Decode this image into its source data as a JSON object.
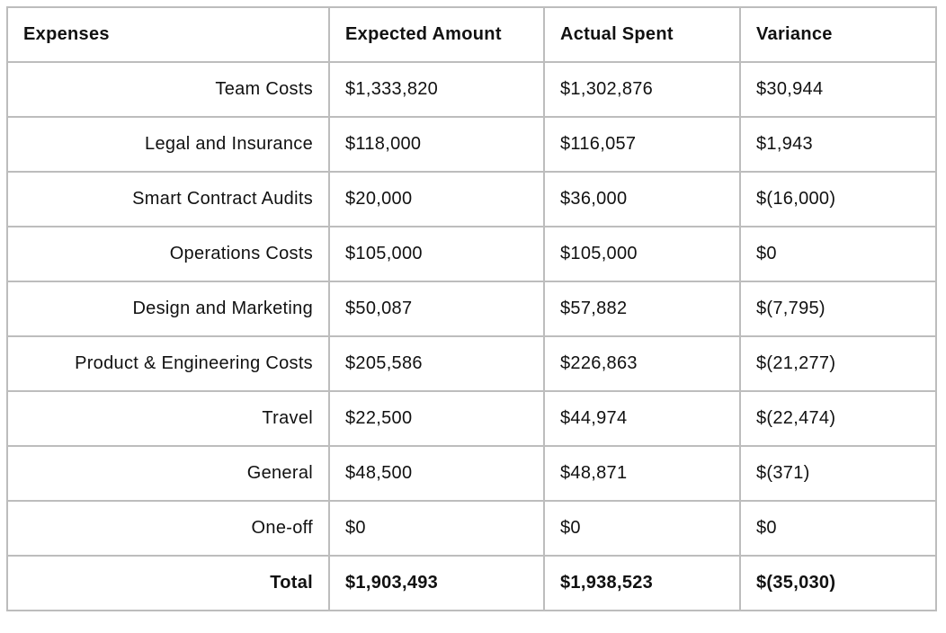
{
  "table": {
    "headers": [
      "Expenses",
      "Expected Amount",
      "Actual Spent",
      "Variance"
    ],
    "rows": [
      {
        "label": "Team Costs",
        "expected": "$1,333,820",
        "actual": "$1,302,876",
        "variance": "$30,944"
      },
      {
        "label": "Legal and Insurance",
        "expected": "$118,000",
        "actual": "$116,057",
        "variance": "$1,943"
      },
      {
        "label": "Smart Contract Audits",
        "expected": "$20,000",
        "actual": "$36,000",
        "variance": "$(16,000)"
      },
      {
        "label": "Operations Costs",
        "expected": "$105,000",
        "actual": "$105,000",
        "variance": "$0"
      },
      {
        "label": "Design and Marketing",
        "expected": "$50,087",
        "actual": "$57,882",
        "variance": "$(7,795)"
      },
      {
        "label": "Product & Engineering Costs",
        "expected": "$205,586",
        "actual": "$226,863",
        "variance": "$(21,277)"
      },
      {
        "label": "Travel",
        "expected": "$22,500",
        "actual": "$44,974",
        "variance": "$(22,474)"
      },
      {
        "label": "General",
        "expected": "$48,500",
        "actual": "$48,871",
        "variance": "$(371)"
      },
      {
        "label": "One-off",
        "expected": "$0",
        "actual": "$0",
        "variance": "$0"
      }
    ],
    "total": {
      "label": "Total",
      "expected": "$1,903,493",
      "actual": "$1,938,523",
      "variance": "$(35,030)"
    }
  }
}
